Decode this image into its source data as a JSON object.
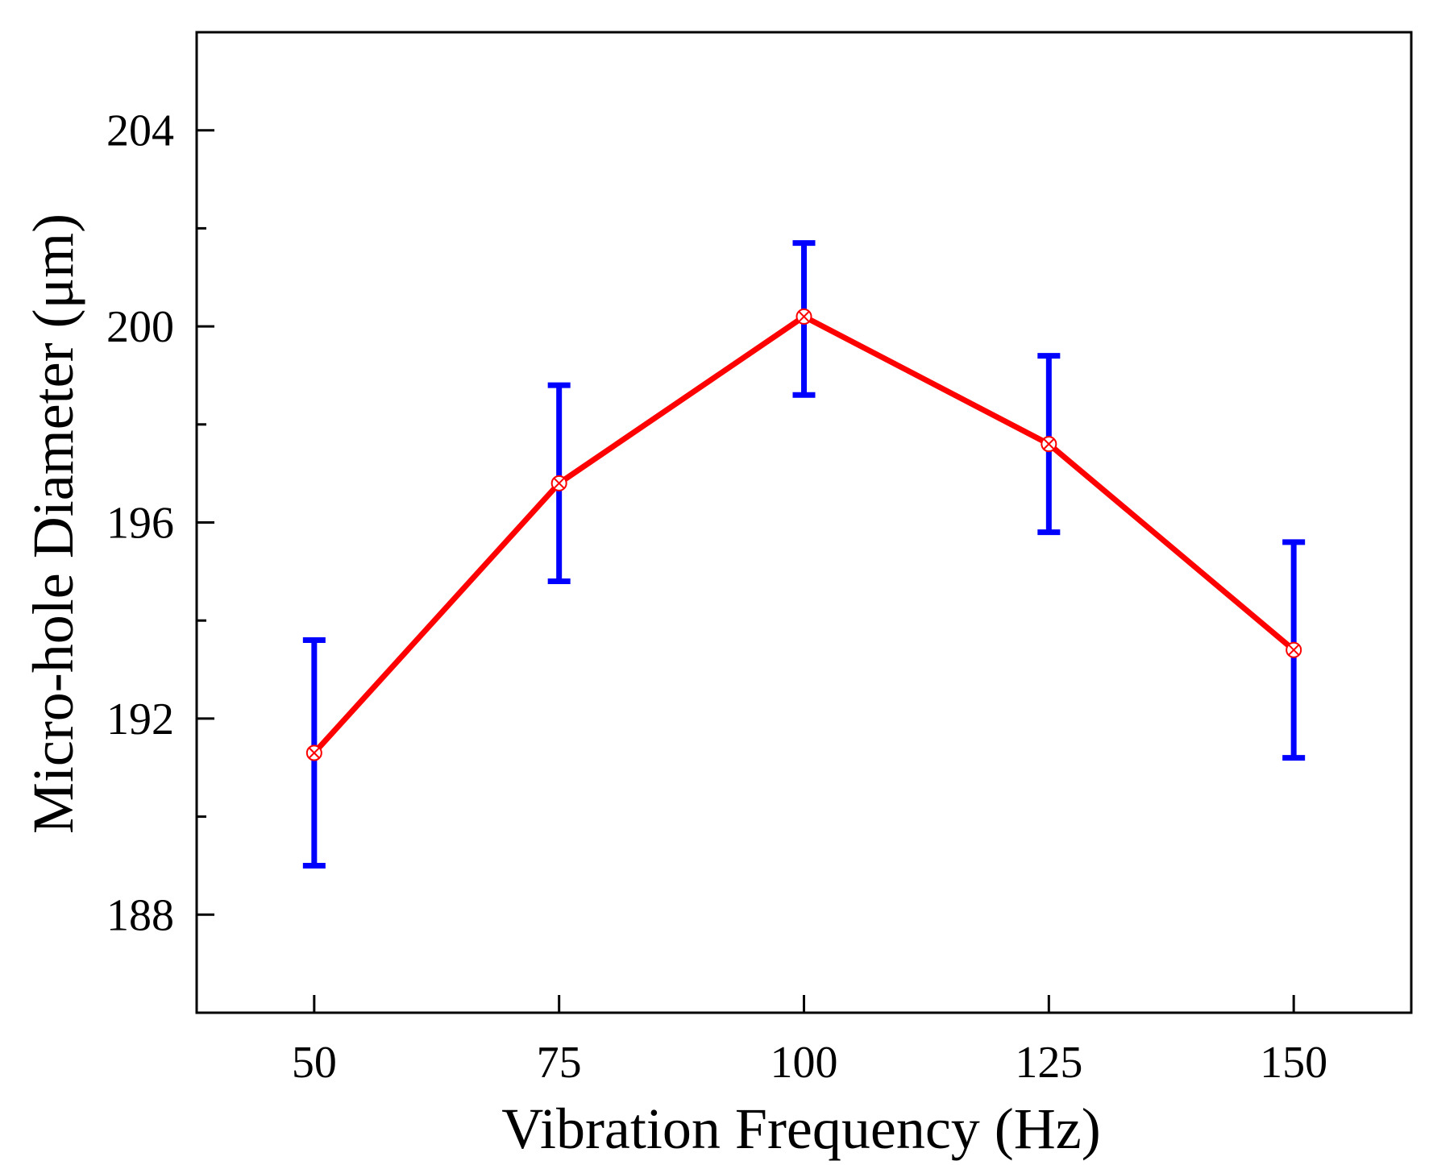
{
  "chart_data": {
    "type": "line",
    "title": "",
    "xlabel": "Vibration Frequency (Hz)",
    "ylabel": "Micro-hole Diameter (μm)",
    "x": [
      50,
      75,
      100,
      125,
      150
    ],
    "series": [
      {
        "name": "Micro-hole Diameter",
        "values": [
          191.3,
          196.8,
          200.2,
          197.6,
          193.4
        ],
        "error_low": [
          189.0,
          194.8,
          198.6,
          195.8,
          191.2
        ],
        "error_high": [
          193.6,
          198.8,
          201.7,
          199.4,
          195.6
        ]
      }
    ],
    "xlim": [
      38,
      162
    ],
    "ylim": [
      186,
      206
    ],
    "xticks": [
      "50",
      "75",
      "100",
      "125",
      "150"
    ],
    "yticks": [
      "188",
      "192",
      "196",
      "200",
      "204"
    ],
    "yticks_minor": [
      190,
      194,
      198,
      202
    ],
    "grid": false,
    "colors": {
      "line": "#ff0000",
      "error_bar": "#0000ff",
      "marker": "#ff0000",
      "axis": "#000000"
    }
  }
}
